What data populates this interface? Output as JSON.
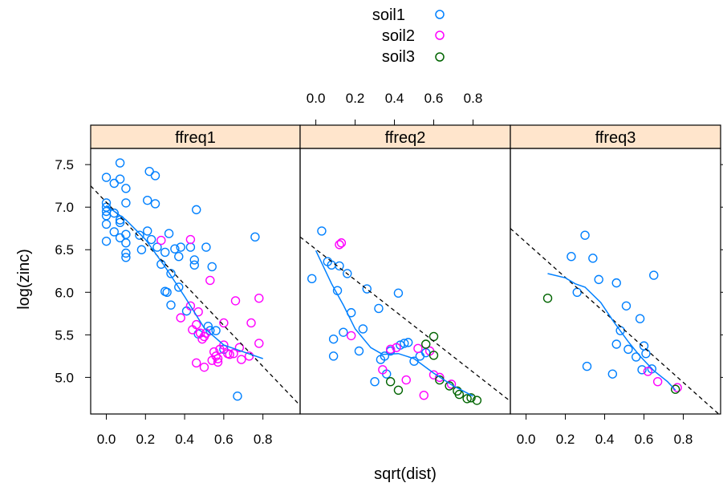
{
  "chart_data": {
    "type": "scatter",
    "xlabel": "sqrt(dist)",
    "ylabel": "log(zinc)",
    "xlim": [
      -0.08,
      0.99
    ],
    "ylim": [
      4.57,
      7.69
    ],
    "x_ticks": [
      0.0,
      0.2,
      0.4,
      0.6,
      0.8
    ],
    "x_tick_labels": [
      "0.0",
      "0.2",
      "0.4",
      "0.6",
      "0.8"
    ],
    "y_ticks": [
      5.0,
      5.5,
      6.0,
      6.5,
      7.0,
      7.5
    ],
    "y_tick_labels": [
      "5.0",
      "5.5",
      "6.0",
      "6.5",
      "7.0",
      "7.5"
    ],
    "legend": {
      "placement": "top",
      "entries": [
        {
          "name": "soil1",
          "color": "#0080ff"
        },
        {
          "name": "soil2",
          "color": "#ff00ff"
        },
        {
          "name": "soil3",
          "color": "#006400"
        }
      ]
    },
    "strip_color": "#ffe5cc",
    "panels": [
      {
        "strip": "ffreq1",
        "regression_line": [
          [
            -0.08,
            7.25
          ],
          [
            0.99,
            4.67
          ]
        ],
        "smooth_line": [
          [
            0.0,
            7.02
          ],
          [
            0.1,
            6.85
          ],
          [
            0.2,
            6.62
          ],
          [
            0.3,
            6.3
          ],
          [
            0.4,
            5.95
          ],
          [
            0.5,
            5.58
          ],
          [
            0.6,
            5.38
          ],
          [
            0.7,
            5.3
          ],
          [
            0.8,
            5.22
          ]
        ],
        "points": [
          {
            "soil": "soil1",
            "x": 0.0,
            "y": 7.35
          },
          {
            "soil": "soil1",
            "x": 0.0,
            "y": 7.05
          },
          {
            "soil": "soil1",
            "x": 0.0,
            "y": 7.0
          },
          {
            "soil": "soil1",
            "x": 0.0,
            "y": 6.95
          },
          {
            "soil": "soil1",
            "x": 0.0,
            "y": 6.9
          },
          {
            "soil": "soil1",
            "x": 0.0,
            "y": 6.8
          },
          {
            "soil": "soil1",
            "x": 0.0,
            "y": 6.6
          },
          {
            "soil": "soil1",
            "x": 0.04,
            "y": 7.28
          },
          {
            "soil": "soil1",
            "x": 0.04,
            "y": 6.93
          },
          {
            "soil": "soil1",
            "x": 0.04,
            "y": 6.71
          },
          {
            "soil": "soil1",
            "x": 0.07,
            "y": 7.52
          },
          {
            "soil": "soil1",
            "x": 0.07,
            "y": 7.33
          },
          {
            "soil": "soil1",
            "x": 0.07,
            "y": 6.85
          },
          {
            "soil": "soil1",
            "x": 0.07,
            "y": 6.82
          },
          {
            "soil": "soil1",
            "x": 0.07,
            "y": 6.64
          },
          {
            "soil": "soil1",
            "x": 0.1,
            "y": 7.22
          },
          {
            "soil": "soil1",
            "x": 0.1,
            "y": 7.05
          },
          {
            "soil": "soil1",
            "x": 0.1,
            "y": 6.68
          },
          {
            "soil": "soil1",
            "x": 0.1,
            "y": 6.58
          },
          {
            "soil": "soil1",
            "x": 0.1,
            "y": 6.46
          },
          {
            "soil": "soil1",
            "x": 0.1,
            "y": 6.41
          },
          {
            "soil": "soil1",
            "x": 0.17,
            "y": 6.67
          },
          {
            "soil": "soil1",
            "x": 0.18,
            "y": 6.5
          },
          {
            "soil": "soil1",
            "x": 0.22,
            "y": 7.42
          },
          {
            "soil": "soil1",
            "x": 0.21,
            "y": 7.08
          },
          {
            "soil": "soil1",
            "x": 0.21,
            "y": 6.72
          },
          {
            "soil": "soil1",
            "x": 0.25,
            "y": 7.37
          },
          {
            "soil": "soil1",
            "x": 0.25,
            "y": 7.04
          },
          {
            "soil": "soil1",
            "x": 0.23,
            "y": 6.62
          },
          {
            "soil": "soil1",
            "x": 0.26,
            "y": 6.53
          },
          {
            "soil": "soil1",
            "x": 0.28,
            "y": 6.33
          },
          {
            "soil": "soil1",
            "x": 0.3,
            "y": 6.47
          },
          {
            "soil": "soil1",
            "x": 0.3,
            "y": 6.01
          },
          {
            "soil": "soil1",
            "x": 0.31,
            "y": 6.0
          },
          {
            "soil": "soil1",
            "x": 0.32,
            "y": 6.69
          },
          {
            "soil": "soil1",
            "x": 0.33,
            "y": 6.22
          },
          {
            "soil": "soil1",
            "x": 0.33,
            "y": 5.85
          },
          {
            "soil": "soil1",
            "x": 0.35,
            "y": 6.51
          },
          {
            "soil": "soil1",
            "x": 0.37,
            "y": 6.42
          },
          {
            "soil": "soil1",
            "x": 0.37,
            "y": 6.06
          },
          {
            "soil": "soil1",
            "x": 0.38,
            "y": 6.53
          },
          {
            "soil": "soil1",
            "x": 0.41,
            "y": 5.78
          },
          {
            "soil": "soil1",
            "x": 0.43,
            "y": 6.53
          },
          {
            "soil": "soil1",
            "x": 0.45,
            "y": 6.38
          },
          {
            "soil": "soil1",
            "x": 0.45,
            "y": 6.32
          },
          {
            "soil": "soil1",
            "x": 0.46,
            "y": 6.97
          },
          {
            "soil": "soil1",
            "x": 0.47,
            "y": 5.51
          },
          {
            "soil": "soil1",
            "x": 0.51,
            "y": 6.53
          },
          {
            "soil": "soil1",
            "x": 0.52,
            "y": 5.6
          },
          {
            "soil": "soil1",
            "x": 0.53,
            "y": 5.55
          },
          {
            "soil": "soil1",
            "x": 0.54,
            "y": 6.3
          },
          {
            "soil": "soil1",
            "x": 0.56,
            "y": 5.55
          },
          {
            "soil": "soil1",
            "x": 0.6,
            "y": 5.33
          },
          {
            "soil": "soil1",
            "x": 0.67,
            "y": 4.78
          },
          {
            "soil": "soil1",
            "x": 0.76,
            "y": 6.65
          },
          {
            "soil": "soil2",
            "x": 0.28,
            "y": 6.61
          },
          {
            "soil": "soil2",
            "x": 0.43,
            "y": 6.62
          },
          {
            "soil": "soil2",
            "x": 0.53,
            "y": 6.14
          },
          {
            "soil": "soil2",
            "x": 0.38,
            "y": 5.7
          },
          {
            "soil": "soil2",
            "x": 0.43,
            "y": 5.84
          },
          {
            "soil": "soil2",
            "x": 0.44,
            "y": 5.56
          },
          {
            "soil": "soil2",
            "x": 0.46,
            "y": 5.62
          },
          {
            "soil": "soil2",
            "x": 0.47,
            "y": 5.77
          },
          {
            "soil": "soil2",
            "x": 0.48,
            "y": 5.52
          },
          {
            "soil": "soil2",
            "x": 0.49,
            "y": 5.45
          },
          {
            "soil": "soil2",
            "x": 0.5,
            "y": 5.48
          },
          {
            "soil": "soil2",
            "x": 0.51,
            "y": 5.52
          },
          {
            "soil": "soil2",
            "x": 0.46,
            "y": 5.17
          },
          {
            "soil": "soil2",
            "x": 0.5,
            "y": 5.12
          },
          {
            "soil": "soil2",
            "x": 0.54,
            "y": 5.2
          },
          {
            "soil": "soil2",
            "x": 0.55,
            "y": 5.3
          },
          {
            "soil": "soil2",
            "x": 0.56,
            "y": 5.25
          },
          {
            "soil": "soil2",
            "x": 0.57,
            "y": 5.18
          },
          {
            "soil": "soil2",
            "x": 0.57,
            "y": 5.22
          },
          {
            "soil": "soil2",
            "x": 0.58,
            "y": 5.33
          },
          {
            "soil": "soil2",
            "x": 0.6,
            "y": 5.38
          },
          {
            "soil": "soil2",
            "x": 0.62,
            "y": 5.28
          },
          {
            "soil": "soil2",
            "x": 0.63,
            "y": 5.27
          },
          {
            "soil": "soil2",
            "x": 0.65,
            "y": 5.28
          },
          {
            "soil": "soil2",
            "x": 0.66,
            "y": 5.9
          },
          {
            "soil": "soil2",
            "x": 0.6,
            "y": 5.64
          },
          {
            "soil": "soil2",
            "x": 0.68,
            "y": 5.35
          },
          {
            "soil": "soil2",
            "x": 0.69,
            "y": 5.21
          },
          {
            "soil": "soil2",
            "x": 0.74,
            "y": 5.64
          },
          {
            "soil": "soil2",
            "x": 0.78,
            "y": 5.93
          },
          {
            "soil": "soil2",
            "x": 0.78,
            "y": 5.4
          },
          {
            "soil": "soil2",
            "x": 0.73,
            "y": 5.25
          }
        ]
      },
      {
        "strip": "ffreq2",
        "regression_line": [
          [
            -0.08,
            6.65
          ],
          [
            0.99,
            4.72
          ]
        ],
        "smooth_line": [
          [
            0.0,
            6.49
          ],
          [
            0.08,
            6.1
          ],
          [
            0.14,
            5.85
          ],
          [
            0.2,
            5.57
          ],
          [
            0.28,
            5.35
          ],
          [
            0.34,
            5.27
          ],
          [
            0.42,
            5.28
          ],
          [
            0.5,
            5.22
          ],
          [
            0.6,
            5.05
          ],
          [
            0.7,
            4.9
          ],
          [
            0.8,
            4.78
          ]
        ],
        "points": [
          {
            "soil": "soil1",
            "x": -0.02,
            "y": 6.16
          },
          {
            "soil": "soil1",
            "x": 0.03,
            "y": 6.72
          },
          {
            "soil": "soil1",
            "x": 0.06,
            "y": 6.36
          },
          {
            "soil": "soil1",
            "x": 0.08,
            "y": 6.32
          },
          {
            "soil": "soil1",
            "x": 0.09,
            "y": 5.45
          },
          {
            "soil": "soil1",
            "x": 0.09,
            "y": 5.25
          },
          {
            "soil": "soil1",
            "x": 0.11,
            "y": 6.02
          },
          {
            "soil": "soil1",
            "x": 0.12,
            "y": 6.31
          },
          {
            "soil": "soil1",
            "x": 0.14,
            "y": 5.53
          },
          {
            "soil": "soil1",
            "x": 0.16,
            "y": 6.22
          },
          {
            "soil": "soil1",
            "x": 0.18,
            "y": 5.76
          },
          {
            "soil": "soil1",
            "x": 0.22,
            "y": 5.31
          },
          {
            "soil": "soil1",
            "x": 0.24,
            "y": 5.57
          },
          {
            "soil": "soil1",
            "x": 0.26,
            "y": 6.04
          },
          {
            "soil": "soil1",
            "x": 0.3,
            "y": 4.95
          },
          {
            "soil": "soil1",
            "x": 0.32,
            "y": 5.81
          },
          {
            "soil": "soil1",
            "x": 0.33,
            "y": 5.21
          },
          {
            "soil": "soil1",
            "x": 0.35,
            "y": 5.25
          },
          {
            "soil": "soil1",
            "x": 0.36,
            "y": 5.04
          },
          {
            "soil": "soil1",
            "x": 0.38,
            "y": 5.31
          },
          {
            "soil": "soil1",
            "x": 0.42,
            "y": 5.99
          },
          {
            "soil": "soil1",
            "x": 0.43,
            "y": 5.38
          },
          {
            "soil": "soil1",
            "x": 0.45,
            "y": 5.4
          },
          {
            "soil": "soil1",
            "x": 0.47,
            "y": 5.41
          },
          {
            "soil": "soil1",
            "x": 0.5,
            "y": 5.19
          },
          {
            "soil": "soil1",
            "x": 0.53,
            "y": 5.25
          },
          {
            "soil": "soil1",
            "x": 0.56,
            "y": 5.29
          },
          {
            "soil": "soil2",
            "x": 0.12,
            "y": 6.56
          },
          {
            "soil": "soil2",
            "x": 0.13,
            "y": 6.58
          },
          {
            "soil": "soil2",
            "x": 0.18,
            "y": 5.49
          },
          {
            "soil": "soil2",
            "x": 0.34,
            "y": 5.09
          },
          {
            "soil": "soil2",
            "x": 0.38,
            "y": 5.33
          },
          {
            "soil": "soil2",
            "x": 0.41,
            "y": 5.35
          },
          {
            "soil": "soil2",
            "x": 0.46,
            "y": 4.97
          },
          {
            "soil": "soil2",
            "x": 0.52,
            "y": 5.34
          },
          {
            "soil": "soil2",
            "x": 0.55,
            "y": 4.79
          },
          {
            "soil": "soil2",
            "x": 0.58,
            "y": 5.31
          },
          {
            "soil": "soil2",
            "x": 0.6,
            "y": 5.03
          },
          {
            "soil": "soil2",
            "x": 0.63,
            "y": 5.0
          },
          {
            "soil": "soil2",
            "x": 0.69,
            "y": 4.92
          },
          {
            "soil": "soil3",
            "x": 0.38,
            "y": 4.95
          },
          {
            "soil": "soil3",
            "x": 0.42,
            "y": 4.85
          },
          {
            "soil": "soil3",
            "x": 0.56,
            "y": 5.39
          },
          {
            "soil": "soil3",
            "x": 0.6,
            "y": 5.48
          },
          {
            "soil": "soil3",
            "x": 0.6,
            "y": 5.26
          },
          {
            "soil": "soil3",
            "x": 0.63,
            "y": 4.97
          },
          {
            "soil": "soil3",
            "x": 0.68,
            "y": 4.9
          },
          {
            "soil": "soil3",
            "x": 0.72,
            "y": 4.84
          },
          {
            "soil": "soil3",
            "x": 0.73,
            "y": 4.8
          },
          {
            "soil": "soil3",
            "x": 0.77,
            "y": 4.75
          },
          {
            "soil": "soil3",
            "x": 0.79,
            "y": 4.76
          },
          {
            "soil": "soil3",
            "x": 0.82,
            "y": 4.73
          }
        ]
      },
      {
        "strip": "ffreq3",
        "regression_line": [
          [
            -0.08,
            6.75
          ],
          [
            0.99,
            4.55
          ]
        ],
        "smooth_line": [
          [
            0.11,
            6.22
          ],
          [
            0.2,
            6.17
          ],
          [
            0.25,
            6.1
          ],
          [
            0.3,
            6.06
          ],
          [
            0.38,
            5.88
          ],
          [
            0.45,
            5.64
          ],
          [
            0.52,
            5.42
          ],
          [
            0.58,
            5.25
          ],
          [
            0.65,
            5.08
          ],
          [
            0.72,
            4.95
          ],
          [
            0.76,
            4.85
          ]
        ],
        "points": [
          {
            "soil": "soil1",
            "x": 0.23,
            "y": 6.42
          },
          {
            "soil": "soil1",
            "x": 0.26,
            "y": 6.0
          },
          {
            "soil": "soil1",
            "x": 0.3,
            "y": 6.67
          },
          {
            "soil": "soil1",
            "x": 0.31,
            "y": 5.13
          },
          {
            "soil": "soil1",
            "x": 0.34,
            "y": 6.4
          },
          {
            "soil": "soil1",
            "x": 0.37,
            "y": 6.15
          },
          {
            "soil": "soil1",
            "x": 0.44,
            "y": 5.04
          },
          {
            "soil": "soil1",
            "x": 0.46,
            "y": 6.11
          },
          {
            "soil": "soil1",
            "x": 0.46,
            "y": 5.39
          },
          {
            "soil": "soil1",
            "x": 0.48,
            "y": 5.55
          },
          {
            "soil": "soil1",
            "x": 0.51,
            "y": 5.84
          },
          {
            "soil": "soil1",
            "x": 0.52,
            "y": 5.33
          },
          {
            "soil": "soil1",
            "x": 0.56,
            "y": 5.24
          },
          {
            "soil": "soil1",
            "x": 0.58,
            "y": 5.69
          },
          {
            "soil": "soil1",
            "x": 0.59,
            "y": 5.09
          },
          {
            "soil": "soil1",
            "x": 0.6,
            "y": 5.37
          },
          {
            "soil": "soil1",
            "x": 0.61,
            "y": 5.28
          },
          {
            "soil": "soil1",
            "x": 0.65,
            "y": 6.2
          },
          {
            "soil": "soil1",
            "x": 0.64,
            "y": 5.1
          },
          {
            "soil": "soil2",
            "x": 0.62,
            "y": 5.07
          },
          {
            "soil": "soil2",
            "x": 0.67,
            "y": 4.95
          },
          {
            "soil": "soil2",
            "x": 0.77,
            "y": 4.88
          },
          {
            "soil": "soil3",
            "x": 0.11,
            "y": 5.93
          },
          {
            "soil": "soil3",
            "x": 0.76,
            "y": 4.86
          }
        ]
      }
    ]
  }
}
